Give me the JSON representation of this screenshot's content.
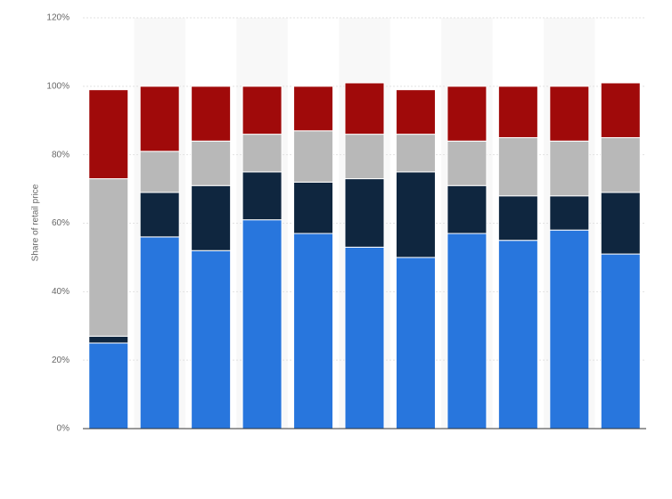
{
  "chart_data": {
    "type": "stacked_bar",
    "y_axis_label": "Share of retail price",
    "categories": [
      null,
      null,
      null,
      null,
      null,
      null,
      null,
      null,
      null,
      null,
      null
    ],
    "series": [
      {
        "color": "#2876dd",
        "values": [
          25,
          56,
          52,
          61,
          57,
          53,
          50,
          57,
          55,
          58,
          51
        ]
      },
      {
        "color": "#0f263f",
        "values": [
          2,
          13,
          19,
          14,
          15,
          20,
          25,
          14,
          13,
          10,
          18
        ]
      },
      {
        "color": "#b8b8b8",
        "values": [
          46,
          12,
          13,
          11,
          15,
          13,
          11,
          13,
          17,
          16,
          16
        ]
      },
      {
        "color": "#a00a0a",
        "values": [
          26,
          19,
          16,
          14,
          13,
          15,
          13,
          16,
          15,
          16,
          16
        ]
      }
    ],
    "ylim": [
      0,
      120
    ],
    "yticks": [
      {
        "value": 0,
        "label": "0%"
      },
      {
        "value": 20,
        "label": "20%"
      },
      {
        "value": 40,
        "label": "40%"
      },
      {
        "value": 60,
        "label": "60%"
      },
      {
        "value": 80,
        "label": "80%"
      },
      {
        "value": 100,
        "label": "100%"
      },
      {
        "value": 120,
        "label": "120%"
      }
    ],
    "grid": true
  }
}
